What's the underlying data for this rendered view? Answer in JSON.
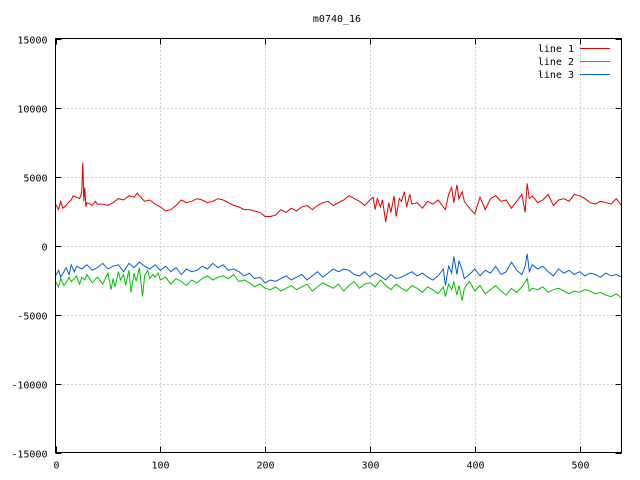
{
  "chart_data": {
    "type": "line",
    "title": "m0740_16",
    "xlabel": "",
    "ylabel": "",
    "xlim": [
      0,
      540
    ],
    "ylim": [
      -15000,
      15000
    ],
    "xticks": [
      0,
      100,
      200,
      300,
      400,
      500
    ],
    "yticks": [
      -15000,
      -10000,
      -5000,
      0,
      5000,
      10000,
      15000
    ],
    "grid": true,
    "legend_position": "top-right",
    "series": [
      {
        "name": "line 1",
        "color": "#e00000",
        "x": [
          0,
          3,
          5,
          7,
          10,
          12,
          15,
          17,
          20,
          23,
          25,
          26,
          27,
          28,
          29,
          30,
          33,
          35,
          38,
          40,
          45,
          50,
          55,
          60,
          65,
          70,
          75,
          78,
          80,
          85,
          90,
          95,
          100,
          105,
          110,
          115,
          120,
          125,
          130,
          135,
          140,
          145,
          150,
          155,
          160,
          165,
          170,
          175,
          180,
          185,
          190,
          195,
          200,
          205,
          210,
          215,
          220,
          225,
          230,
          235,
          240,
          245,
          250,
          255,
          260,
          265,
          270,
          275,
          280,
          285,
          290,
          295,
          300,
          303,
          305,
          307,
          310,
          312,
          315,
          318,
          320,
          323,
          325,
          328,
          330,
          333,
          335,
          338,
          340,
          345,
          350,
          355,
          360,
          365,
          370,
          372,
          375,
          378,
          380,
          383,
          385,
          388,
          390,
          395,
          400,
          405,
          410,
          415,
          420,
          425,
          430,
          435,
          440,
          445,
          448,
          450,
          452,
          455,
          460,
          465,
          470,
          475,
          480,
          485,
          490,
          495,
          500,
          505,
          510,
          515,
          520,
          525,
          530,
          535,
          540
        ],
        "values": [
          3000,
          2600,
          3200,
          2700,
          2900,
          3100,
          3300,
          3600,
          3500,
          3400,
          3800,
          6000,
          3200,
          4200,
          2800,
          3100,
          3000,
          2900,
          3200,
          3000,
          3000,
          2900,
          3100,
          3400,
          3300,
          3600,
          3500,
          3800,
          3600,
          3200,
          3300,
          3000,
          2800,
          2500,
          2600,
          2900,
          3300,
          3100,
          3200,
          3400,
          3300,
          3100,
          3200,
          3400,
          3300,
          3100,
          2900,
          2800,
          2600,
          2600,
          2500,
          2400,
          2100,
          2100,
          2200,
          2600,
          2400,
          2700,
          2500,
          2800,
          2900,
          2600,
          2900,
          3100,
          3200,
          2900,
          3100,
          3300,
          3600,
          3400,
          3200,
          2900,
          3300,
          3500,
          2600,
          3400,
          2800,
          3300,
          1700,
          3100,
          2400,
          3600,
          2100,
          3400,
          3200,
          3900,
          2800,
          3700,
          3000,
          3100,
          2700,
          3200,
          3000,
          3300,
          2800,
          2600,
          3700,
          4200,
          3100,
          4400,
          3400,
          3900,
          3200,
          2700,
          2300,
          3500,
          2600,
          3400,
          3600,
          3200,
          3300,
          2700,
          3200,
          3700,
          2400,
          4500,
          3400,
          3600,
          3100,
          3300,
          3700,
          2900,
          3300,
          3400,
          3200,
          3700,
          3600,
          3400,
          3100,
          3000,
          3200,
          3100,
          3000,
          3400,
          2900
        ]
      },
      {
        "name": "line 2",
        "color": "#00c000",
        "x": [
          0,
          3,
          5,
          8,
          10,
          13,
          15,
          18,
          20,
          23,
          25,
          28,
          30,
          35,
          40,
          45,
          50,
          53,
          55,
          57,
          60,
          62,
          65,
          67,
          70,
          72,
          75,
          77,
          80,
          83,
          85,
          88,
          90,
          93,
          95,
          98,
          100,
          105,
          110,
          115,
          120,
          125,
          130,
          135,
          140,
          145,
          150,
          155,
          160,
          165,
          170,
          175,
          180,
          185,
          190,
          195,
          200,
          205,
          210,
          215,
          220,
          225,
          230,
          235,
          240,
          245,
          250,
          255,
          260,
          265,
          270,
          275,
          280,
          285,
          290,
          295,
          300,
          305,
          310,
          315,
          320,
          325,
          330,
          335,
          340,
          345,
          350,
          355,
          360,
          365,
          370,
          372,
          375,
          378,
          380,
          383,
          385,
          388,
          390,
          395,
          400,
          405,
          410,
          415,
          420,
          425,
          430,
          435,
          440,
          445,
          450,
          452,
          455,
          460,
          465,
          470,
          475,
          480,
          485,
          490,
          495,
          500,
          505,
          510,
          515,
          520,
          525,
          530,
          535,
          540
        ],
        "values": [
          -2600,
          -3000,
          -2400,
          -2900,
          -2700,
          -2300,
          -2600,
          -2400,
          -2200,
          -2800,
          -2300,
          -2500,
          -2100,
          -2700,
          -2300,
          -2800,
          -2000,
          -3200,
          -2400,
          -3000,
          -1900,
          -2500,
          -2100,
          -2900,
          -1800,
          -3400,
          -2000,
          -2600,
          -1600,
          -3700,
          -2200,
          -1800,
          -2400,
          -2100,
          -2300,
          -2000,
          -2500,
          -2300,
          -2800,
          -2400,
          -2600,
          -2900,
          -2500,
          -2700,
          -2400,
          -2200,
          -2500,
          -2300,
          -2200,
          -2400,
          -2100,
          -2600,
          -2500,
          -2700,
          -3000,
          -2800,
          -3100,
          -3200,
          -3000,
          -3300,
          -3100,
          -2900,
          -3200,
          -3000,
          -2800,
          -3300,
          -3000,
          -2700,
          -2900,
          -3100,
          -2800,
          -3300,
          -2900,
          -2600,
          -3100,
          -2800,
          -2700,
          -3000,
          -2500,
          -2900,
          -3200,
          -2800,
          -3100,
          -3300,
          -2900,
          -3100,
          -3400,
          -3000,
          -3200,
          -3500,
          -3000,
          -3700,
          -2800,
          -3200,
          -2600,
          -3600,
          -2900,
          -4000,
          -3100,
          -2600,
          -3300,
          -2900,
          -3500,
          -3200,
          -2900,
          -3300,
          -3600,
          -3100,
          -3400,
          -3000,
          -2400,
          -3300,
          -3100,
          -3200,
          -3000,
          -3400,
          -3200,
          -3100,
          -3300,
          -3500,
          -3300,
          -3400,
          -3200,
          -3300,
          -3500,
          -3400,
          -3600,
          -3700,
          -3500,
          -3800
        ]
      },
      {
        "name": "line 3",
        "color": "#0060e0",
        "x": [
          0,
          3,
          5,
          8,
          10,
          13,
          15,
          18,
          20,
          25,
          30,
          35,
          40,
          45,
          50,
          55,
          60,
          65,
          70,
          75,
          80,
          85,
          90,
          95,
          100,
          105,
          110,
          115,
          120,
          125,
          130,
          135,
          140,
          145,
          150,
          155,
          160,
          165,
          170,
          175,
          180,
          185,
          190,
          195,
          200,
          205,
          210,
          215,
          220,
          225,
          230,
          235,
          240,
          245,
          250,
          255,
          260,
          265,
          270,
          275,
          280,
          285,
          290,
          295,
          300,
          305,
          310,
          315,
          320,
          325,
          330,
          335,
          340,
          345,
          350,
          355,
          360,
          365,
          370,
          372,
          375,
          378,
          380,
          383,
          385,
          388,
          390,
          395,
          400,
          405,
          410,
          415,
          420,
          425,
          430,
          435,
          440,
          445,
          448,
          450,
          452,
          455,
          460,
          465,
          470,
          475,
          480,
          485,
          490,
          495,
          500,
          505,
          510,
          515,
          520,
          525,
          530,
          535,
          540
        ],
        "values": [
          -2200,
          -1800,
          -2300,
          -1900,
          -1600,
          -2100,
          -1400,
          -1900,
          -1500,
          -1700,
          -1400,
          -1800,
          -1600,
          -1300,
          -1700,
          -1500,
          -1400,
          -1900,
          -1300,
          -1600,
          -1200,
          -1500,
          -1700,
          -1400,
          -1800,
          -1500,
          -1900,
          -1600,
          -2100,
          -1700,
          -1900,
          -1800,
          -1500,
          -1700,
          -1300,
          -1600,
          -1400,
          -1800,
          -1700,
          -1900,
          -2200,
          -2000,
          -2400,
          -2300,
          -2700,
          -2500,
          -2600,
          -2400,
          -2200,
          -2500,
          -2300,
          -2100,
          -2500,
          -2200,
          -1900,
          -2300,
          -2000,
          -1700,
          -1900,
          -1700,
          -1800,
          -2100,
          -2200,
          -1900,
          -2300,
          -2000,
          -2200,
          -2500,
          -2100,
          -2400,
          -2300,
          -2100,
          -1900,
          -2200,
          -2000,
          -2300,
          -2500,
          -2200,
          -1700,
          -2900,
          -1500,
          -2000,
          -800,
          -2100,
          -1100,
          -1800,
          -2400,
          -2100,
          -1700,
          -2200,
          -1800,
          -2000,
          -1500,
          -2100,
          -1900,
          -1200,
          -1800,
          -2100,
          -1500,
          -600,
          -1900,
          -1400,
          -1700,
          -1500,
          -1900,
          -2200,
          -1700,
          -2000,
          -1800,
          -2100,
          -1900,
          -2200,
          -2000,
          -2100,
          -2300,
          -2000,
          -2200,
          -2100,
          -2300
        ]
      }
    ]
  }
}
